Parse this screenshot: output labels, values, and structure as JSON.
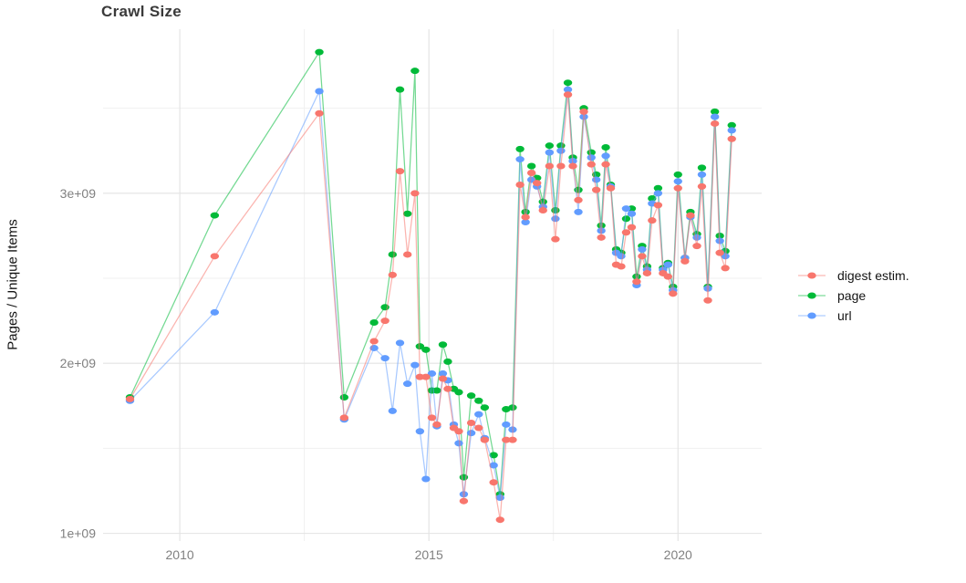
{
  "page": {
    "background": "#ffffff"
  },
  "chart_data": {
    "type": "line",
    "title": "Crawl Size",
    "ylabel": "Pages / Unique Items",
    "xlabel": "",
    "value_unit": "1e+09",
    "grid": true,
    "legend_position": "right",
    "x_domain": [
      2008.46,
      2021.68
    ],
    "y_domain_billions": [
      0.955,
      3.965
    ],
    "x_major_ticks": [
      2010,
      2015,
      2020
    ],
    "x_tick_labels": [
      "2010",
      "2015",
      "2020"
    ],
    "x_minor_gridlines": [
      2012.5,
      2017.5
    ],
    "y_major_ticks_billions": [
      1,
      2,
      3
    ],
    "y_tick_labels": [
      "1e+09",
      "2e+09",
      "3e+09"
    ],
    "y_minor_gridlines_billions": [
      1.5,
      2.5,
      3.5
    ],
    "colors": {
      "digest": "#F8766D",
      "page": "#00BA38",
      "url": "#619CFF"
    },
    "gridline_major_color": "#e3e3e3",
    "gridline_minor_color": "#f0f0f0",
    "x_years": [
      2009.0,
      2010.7,
      2012.8,
      2013.3,
      2013.9,
      2014.12,
      2014.27,
      2014.42,
      2014.57,
      2014.72,
      2014.82,
      2014.94,
      2015.06,
      2015.16,
      2015.28,
      2015.38,
      2015.5,
      2015.6,
      2015.7,
      2015.85,
      2016.0,
      2016.12,
      2016.3,
      2016.43,
      2016.55,
      2016.68,
      2016.83,
      2016.94,
      2017.06,
      2017.17,
      2017.29,
      2017.42,
      2017.54,
      2017.65,
      2017.79,
      2017.89,
      2018.0,
      2018.11,
      2018.26,
      2018.36,
      2018.46,
      2018.55,
      2018.65,
      2018.76,
      2018.86,
      2018.96,
      2019.07,
      2019.17,
      2019.28,
      2019.38,
      2019.48,
      2019.6,
      2019.7,
      2019.8,
      2019.9,
      2020.0,
      2020.14,
      2020.25,
      2020.38,
      2020.48,
      2020.6,
      2020.74,
      2020.84,
      2020.95,
      2021.08
    ],
    "series": [
      {
        "name": "digest estim.",
        "color": "#F8766D",
        "values_billions": [
          1.79,
          2.63,
          3.47,
          1.68,
          2.13,
          2.25,
          2.52,
          3.13,
          2.64,
          3.0,
          1.92,
          1.92,
          1.68,
          1.64,
          1.91,
          1.85,
          1.62,
          1.6,
          1.19,
          1.65,
          1.62,
          1.55,
          1.3,
          1.08,
          1.55,
          1.55,
          3.05,
          2.86,
          3.12,
          3.06,
          2.9,
          3.16,
          2.73,
          3.16,
          3.58,
          3.16,
          2.96,
          3.48,
          3.17,
          3.02,
          2.74,
          3.17,
          3.03,
          2.58,
          2.57,
          2.77,
          2.8,
          2.48,
          2.63,
          2.53,
          2.84,
          2.93,
          2.53,
          2.51,
          2.41,
          3.03,
          2.6,
          2.87,
          2.69,
          3.04,
          2.37,
          3.41,
          2.65,
          2.56,
          3.32
        ]
      },
      {
        "name": "page",
        "color": "#00BA38",
        "values_billions": [
          1.8,
          2.87,
          3.83,
          1.8,
          2.24,
          2.33,
          2.64,
          3.61,
          2.88,
          3.72,
          2.1,
          2.08,
          1.84,
          1.84,
          2.11,
          2.01,
          1.85,
          1.83,
          1.33,
          1.81,
          1.78,
          1.74,
          1.46,
          1.23,
          1.73,
          1.74,
          3.26,
          2.89,
          3.16,
          3.09,
          2.95,
          3.28,
          2.9,
          3.28,
          3.65,
          3.21,
          3.02,
          3.5,
          3.24,
          3.11,
          2.81,
          3.27,
          3.05,
          2.67,
          2.65,
          2.85,
          2.91,
          2.51,
          2.69,
          2.57,
          2.97,
          3.03,
          2.56,
          2.59,
          2.45,
          3.11,
          2.62,
          2.89,
          2.76,
          3.15,
          2.45,
          3.48,
          2.75,
          2.66,
          3.4
        ]
      },
      {
        "name": "url",
        "color": "#619CFF",
        "values_billions": [
          1.78,
          2.3,
          3.6,
          1.67,
          2.09,
          2.03,
          1.72,
          2.12,
          1.88,
          1.99,
          1.6,
          1.32,
          1.94,
          1.63,
          1.94,
          1.9,
          1.64,
          1.53,
          1.23,
          1.59,
          1.7,
          1.56,
          1.4,
          1.21,
          1.64,
          1.61,
          3.2,
          2.83,
          3.08,
          3.04,
          2.92,
          3.24,
          2.85,
          3.25,
          3.61,
          3.19,
          2.89,
          3.45,
          3.21,
          3.08,
          2.78,
          3.22,
          3.04,
          2.65,
          2.63,
          2.91,
          2.88,
          2.46,
          2.67,
          2.55,
          2.94,
          3.0,
          2.55,
          2.58,
          2.43,
          3.07,
          2.62,
          2.86,
          2.74,
          3.11,
          2.44,
          3.45,
          2.72,
          2.63,
          3.37
        ]
      }
    ],
    "draw_order": [
      1,
      2,
      0
    ]
  }
}
